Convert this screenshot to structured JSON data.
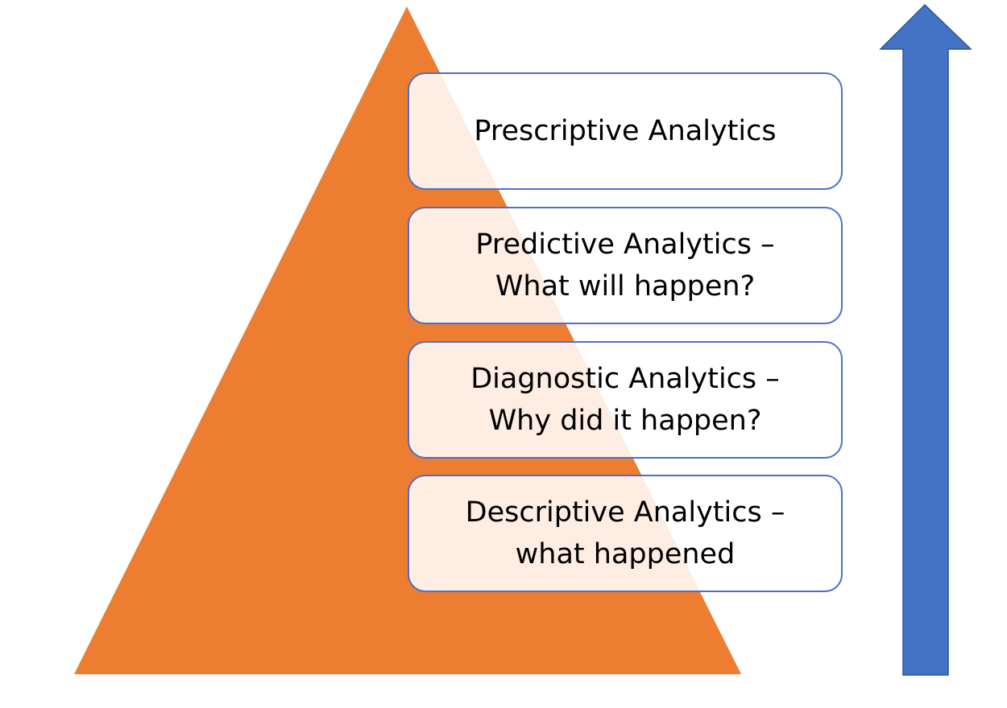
{
  "levels": [
    {
      "text": "Prescriptive Analytics"
    },
    {
      "text": "Predictive Analytics –\nWhat will happen?"
    },
    {
      "text": "Diagnostic Analytics –\nWhy did it happen?"
    },
    {
      "text": "Descriptive Analytics –\nwhat happened"
    }
  ],
  "colors": {
    "pyramid": "#ed7d31",
    "arrow": "#4472c4",
    "box_border": "#4a72c4",
    "text": "#000000"
  },
  "arrow_direction": "up"
}
